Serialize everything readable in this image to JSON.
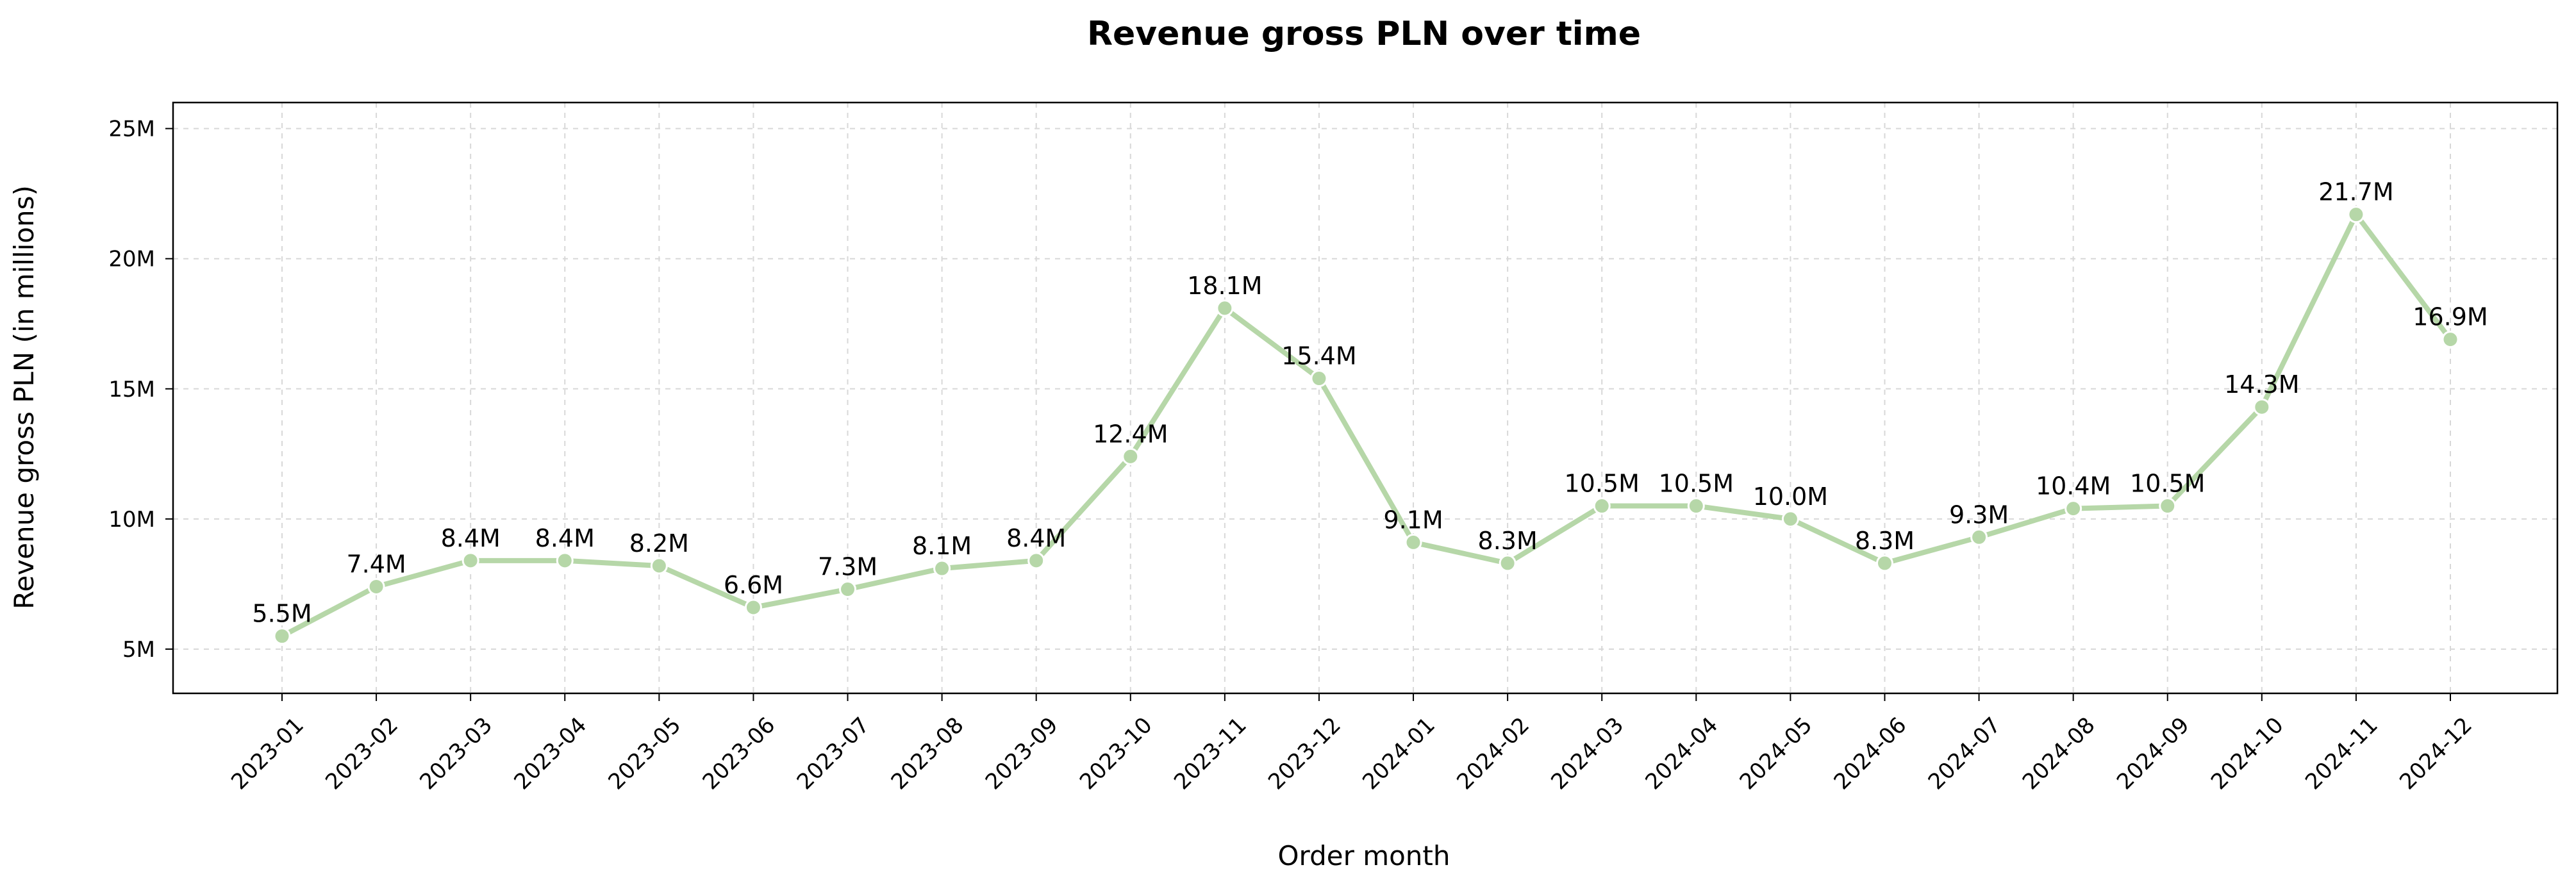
{
  "chart_data": {
    "type": "line",
    "title": "Revenue gross PLN over time",
    "xlabel": "Order month",
    "ylabel": "Revenue gross PLN (in millions)",
    "categories": [
      "2023-01",
      "2023-02",
      "2023-03",
      "2023-04",
      "2023-05",
      "2023-06",
      "2023-07",
      "2023-08",
      "2023-09",
      "2023-10",
      "2023-11",
      "2023-12",
      "2024-01",
      "2024-02",
      "2024-03",
      "2024-04",
      "2024-05",
      "2024-06",
      "2024-07",
      "2024-08",
      "2024-09",
      "2024-10",
      "2024-11",
      "2024-12"
    ],
    "values": [
      5.5,
      7.4,
      8.4,
      8.4,
      8.2,
      6.6,
      7.3,
      8.1,
      8.4,
      12.4,
      18.1,
      15.4,
      9.1,
      8.3,
      10.5,
      10.5,
      10.0,
      8.3,
      9.3,
      10.4,
      10.5,
      14.3,
      21.7,
      16.9
    ],
    "data_labels": [
      "5.5M",
      "7.4M",
      "8.4M",
      "8.4M",
      "8.2M",
      "6.6M",
      "7.3M",
      "8.1M",
      "8.4M",
      "12.4M",
      "18.1M",
      "15.4M",
      "9.1M",
      "8.3M",
      "10.5M",
      "10.5M",
      "10.0M",
      "8.3M",
      "9.3M",
      "10.4M",
      "10.5M",
      "14.3M",
      "21.7M",
      "16.9M"
    ],
    "ylim": [
      3.3,
      26.0
    ],
    "yticks": [
      5,
      10,
      15,
      20,
      25
    ],
    "ytick_labels": [
      "5M",
      "10M",
      "15M",
      "20M",
      "25M"
    ],
    "grid": true,
    "line_color": "#b6d7a8",
    "marker_color": "#b6d7a8",
    "x_tick_rotation": "45"
  }
}
